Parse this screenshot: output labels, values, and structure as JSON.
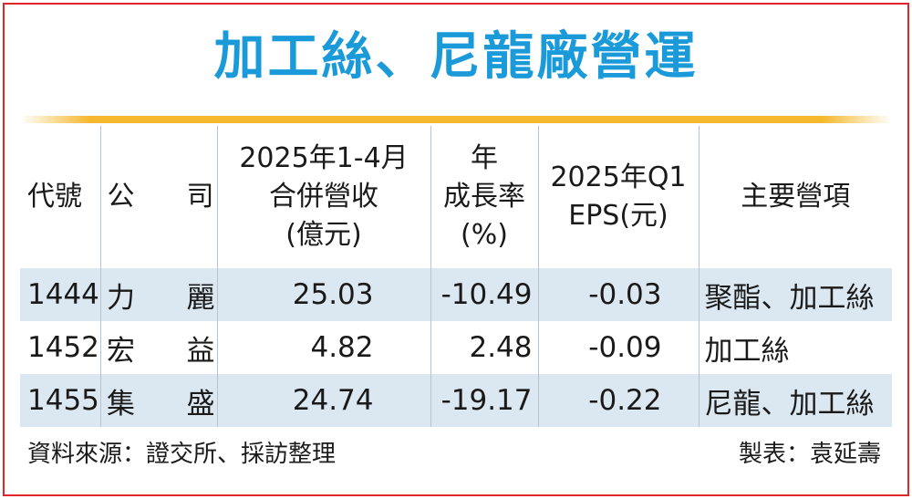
{
  "title": "加工絲、尼龍廠營運",
  "table": {
    "headers": {
      "code": "代號",
      "company": [
        "公",
        "司"
      ],
      "revenue": [
        "2025年1-4月",
        "合併營收",
        "(億元)"
      ],
      "growth": [
        "年",
        "成長率",
        "(%)"
      ],
      "eps": [
        "2025年Q1",
        "EPS(元)"
      ],
      "business": "主要營項"
    },
    "rows": [
      {
        "code": "1444",
        "company": [
          "力",
          "麗"
        ],
        "revenue": "25.03",
        "growth": "-10.49",
        "eps": "-0.03",
        "business": "聚酯、加工絲"
      },
      {
        "code": "1452",
        "company": [
          "宏",
          "益"
        ],
        "revenue": "4.82",
        "growth": "2.48",
        "eps": "-0.09",
        "business": "加工絲"
      },
      {
        "code": "1455",
        "company": [
          "集",
          "盛"
        ],
        "revenue": "24.74",
        "growth": "-19.17",
        "eps": "-0.22",
        "business": "尼龍、加工絲"
      }
    ]
  },
  "footer": {
    "source": "資料來源：證交所、採訪整理",
    "credit": "製表：袁延壽"
  },
  "colors": {
    "title": "#1a9ad9",
    "rule": "#f6b92d",
    "row_shade": "#dce8f1",
    "border": "#e0262b"
  }
}
